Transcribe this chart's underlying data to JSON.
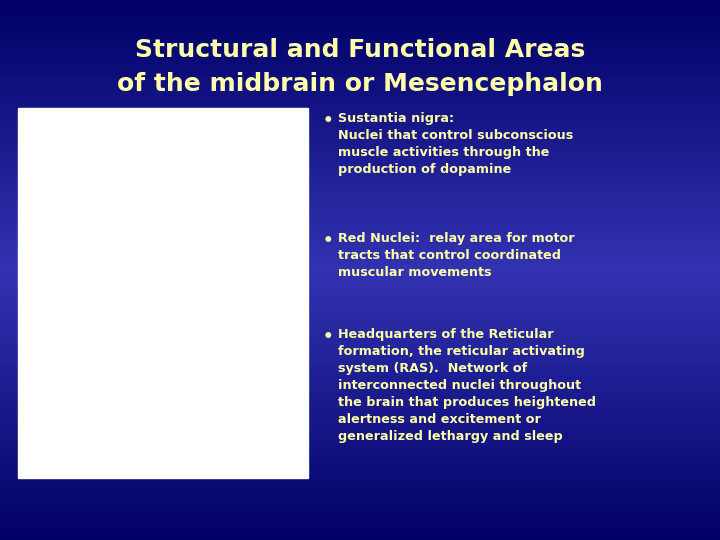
{
  "title_line1": "Structural and Functional Areas",
  "title_line2": "of the midbrain or Mesencephalon",
  "title_color": "#FFFFAA",
  "title_fontsize": 18,
  "bg_color_top": "#000066",
  "bg_color_mid": "#2222AA",
  "bg_color_bottom": "#000066",
  "text_color": "#FFFFAA",
  "font_size": 9.2,
  "bullet_font_size": 10,
  "bullet1_header": "Sustantia nigra:",
  "bullet1_body": "Nuclei that control subconscious\nmuscle activities through the\nproduction of dopamine",
  "bullet2_text": "Red Nuclei:  relay area for motor\ntracts that control coordinated\nmuscular movements",
  "bullet3_text": "Headquarters of the Reticular\nformation, the reticular activating\nsystem (RAS).  Network of\ninterconnected nuclei throughout\nthe brain that produces heightened\nalertness and excitement or\ngeneralized lethargy and sleep"
}
